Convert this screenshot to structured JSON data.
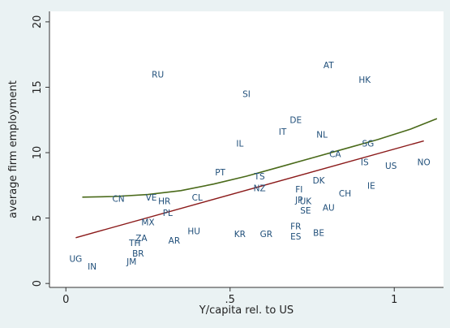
{
  "chart_data": {
    "type": "scatter",
    "title": "",
    "xlabel": "Y/capita rel. to US",
    "ylabel": "average firm employment",
    "xlim": [
      -0.05,
      1.15
    ],
    "ylim": [
      -0.3,
      20.8
    ],
    "xticks": [
      {
        "value": 0,
        "label": "0"
      },
      {
        "value": 0.5,
        "label": ".5"
      },
      {
        "value": 1,
        "label": "1"
      }
    ],
    "yticks": [
      {
        "value": 0,
        "label": "0"
      },
      {
        "value": 5,
        "label": "5"
      },
      {
        "value": 10,
        "label": "10"
      },
      {
        "value": 15,
        "label": "15"
      },
      {
        "value": 20,
        "label": "20"
      }
    ],
    "grid": false,
    "colors": {
      "background": "#eaf2f3",
      "plot_background": "#ffffff",
      "marker_labels": "#1f4e79",
      "linear_fit": "#8b1a1a",
      "smooth_fit": "#4a6a1a"
    },
    "points": [
      {
        "label": "RU",
        "x": 0.28,
        "y": 16.0
      },
      {
        "label": "AT",
        "x": 0.8,
        "y": 16.7
      },
      {
        "label": "HK",
        "x": 0.91,
        "y": 15.6
      },
      {
        "label": "SI",
        "x": 0.55,
        "y": 14.5
      },
      {
        "label": "DE",
        "x": 0.7,
        "y": 12.5
      },
      {
        "label": "IT",
        "x": 0.66,
        "y": 11.6
      },
      {
        "label": "NL",
        "x": 0.78,
        "y": 11.4
      },
      {
        "label": "IL",
        "x": 0.53,
        "y": 10.7
      },
      {
        "label": "SG",
        "x": 0.92,
        "y": 10.7
      },
      {
        "label": "CA",
        "x": 0.82,
        "y": 9.9
      },
      {
        "label": "IS",
        "x": 0.91,
        "y": 9.3
      },
      {
        "label": "NO",
        "x": 1.09,
        "y": 9.3
      },
      {
        "label": "US",
        "x": 0.99,
        "y": 9.0
      },
      {
        "label": "PT",
        "x": 0.47,
        "y": 8.5
      },
      {
        "label": "TS",
        "x": 0.59,
        "y": 8.2
      },
      {
        "label": "DK",
        "x": 0.77,
        "y": 7.9
      },
      {
        "label": "IE",
        "x": 0.93,
        "y": 7.5
      },
      {
        "label": "NZ",
        "x": 0.59,
        "y": 7.3
      },
      {
        "label": "FI",
        "x": 0.71,
        "y": 7.2
      },
      {
        "label": "CH",
        "x": 0.85,
        "y": 6.9
      },
      {
        "label": "CN",
        "x": 0.16,
        "y": 6.5
      },
      {
        "label": "VE",
        "x": 0.26,
        "y": 6.6
      },
      {
        "label": "CL",
        "x": 0.4,
        "y": 6.6
      },
      {
        "label": "JP",
        "x": 0.71,
        "y": 6.4
      },
      {
        "label": "UK",
        "x": 0.73,
        "y": 6.3
      },
      {
        "label": "HR",
        "x": 0.3,
        "y": 6.3
      },
      {
        "label": "AU",
        "x": 0.8,
        "y": 5.8
      },
      {
        "label": "SE",
        "x": 0.73,
        "y": 5.6
      },
      {
        "label": "PL",
        "x": 0.31,
        "y": 5.4
      },
      {
        "label": "MX",
        "x": 0.25,
        "y": 4.7
      },
      {
        "label": "FR",
        "x": 0.7,
        "y": 4.4
      },
      {
        "label": "HU",
        "x": 0.39,
        "y": 4.0
      },
      {
        "label": "BE",
        "x": 0.77,
        "y": 3.9
      },
      {
        "label": "KR",
        "x": 0.53,
        "y": 3.8
      },
      {
        "label": "GR",
        "x": 0.61,
        "y": 3.8
      },
      {
        "label": "ES",
        "x": 0.7,
        "y": 3.6
      },
      {
        "label": "ZA",
        "x": 0.23,
        "y": 3.5
      },
      {
        "label": "AR",
        "x": 0.33,
        "y": 3.3
      },
      {
        "label": "TH",
        "x": 0.21,
        "y": 3.1
      },
      {
        "label": "BR",
        "x": 0.22,
        "y": 2.3
      },
      {
        "label": "UG",
        "x": 0.03,
        "y": 1.9
      },
      {
        "label": "JM",
        "x": 0.2,
        "y": 1.7
      },
      {
        "label": "IN",
        "x": 0.08,
        "y": 1.3
      }
    ],
    "linear_fit": [
      {
        "x": 0.03,
        "y": 3.5
      },
      {
        "x": 1.09,
        "y": 10.9
      }
    ],
    "smooth_fit": [
      {
        "x": 0.05,
        "y": 6.6
      },
      {
        "x": 0.15,
        "y": 6.65
      },
      {
        "x": 0.25,
        "y": 6.8
      },
      {
        "x": 0.35,
        "y": 7.1
      },
      {
        "x": 0.45,
        "y": 7.6
      },
      {
        "x": 0.55,
        "y": 8.2
      },
      {
        "x": 0.65,
        "y": 8.9
      },
      {
        "x": 0.75,
        "y": 9.6
      },
      {
        "x": 0.85,
        "y": 10.3
      },
      {
        "x": 0.95,
        "y": 11.0
      },
      {
        "x": 1.05,
        "y": 11.8
      },
      {
        "x": 1.13,
        "y": 12.6
      }
    ]
  }
}
